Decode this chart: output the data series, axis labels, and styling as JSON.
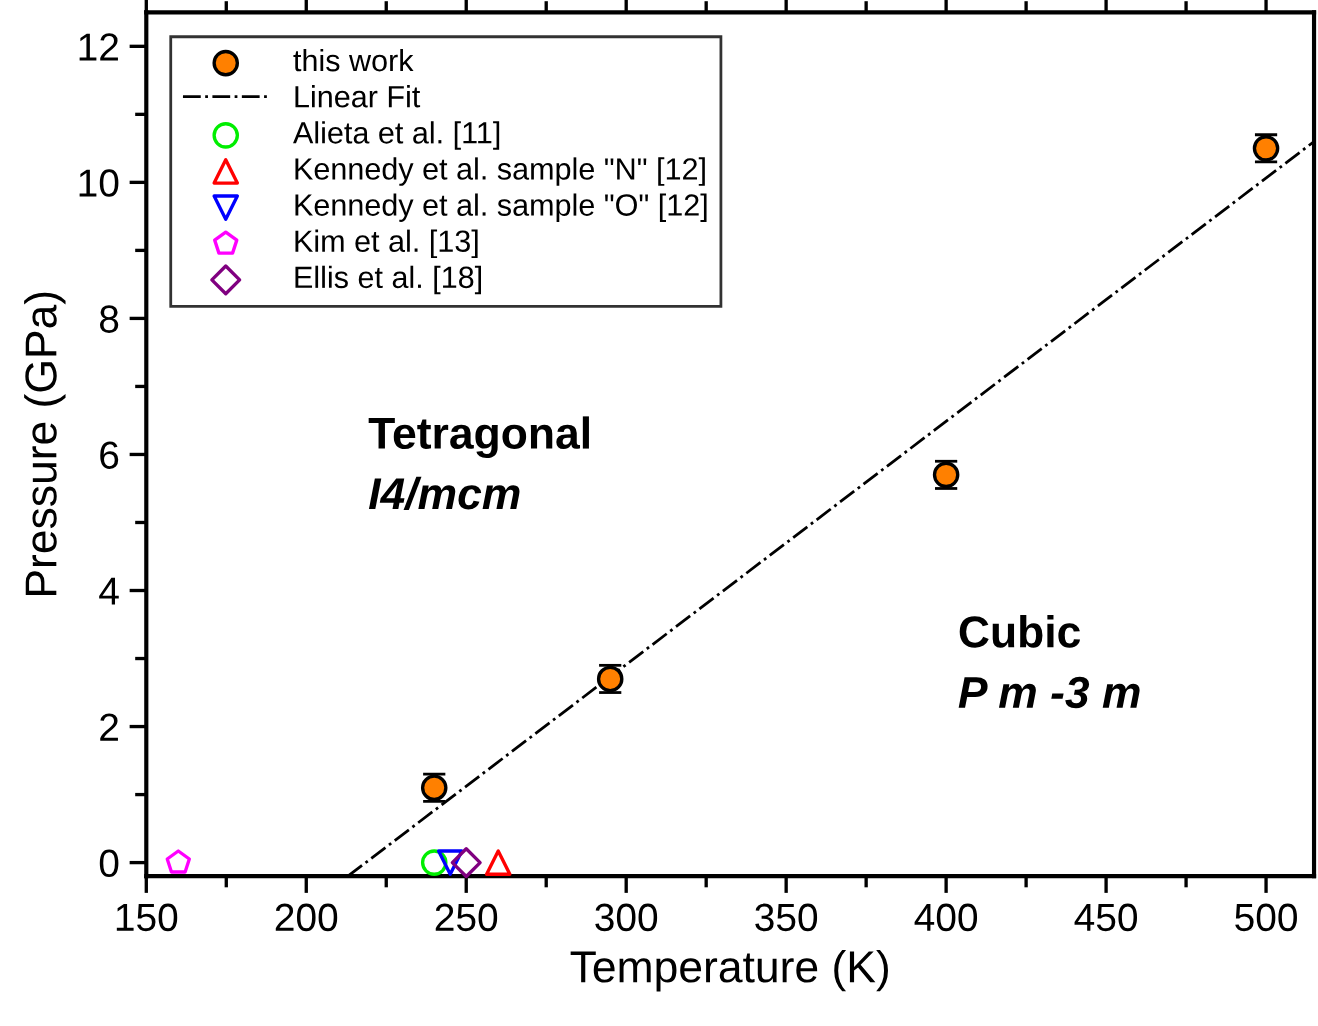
{
  "chart_data": {
    "type": "scatter",
    "xlabel": "Temperature (K)",
    "ylabel": "Pressure (GPa)",
    "xlim": [
      150,
      515
    ],
    "ylim": [
      -0.2,
      12.5
    ],
    "xticks": [
      150,
      200,
      250,
      300,
      350,
      400,
      450,
      500
    ],
    "yticks": [
      0,
      2,
      4,
      6,
      8,
      10,
      12
    ],
    "grid": false,
    "legend": "top left",
    "annotations": [
      "Tetragonal",
      "I4/mcm",
      "Cubic",
      "P m -3 m"
    ],
    "series": [
      {
        "name": "this work",
        "color": "#ff8000",
        "marker": "circle",
        "x": [
          240,
          295,
          400,
          500
        ],
        "values": [
          1.1,
          2.7,
          5.7,
          10.5
        ],
        "errors": [
          0.2,
          0.2,
          0.2,
          0.2
        ]
      },
      {
        "name": "Linear Fit",
        "type": "line",
        "color": "#000000",
        "line_style": "dashdot",
        "marker": "none",
        "x": [
          213,
          515
        ],
        "values": [
          -0.2,
          10.6
        ]
      },
      {
        "name": "Alieta et al. [11]",
        "color": "#00ee00",
        "marker": "circle",
        "x": [
          240
        ],
        "values": [
          0
        ]
      },
      {
        "name": "Kennedy et al. sample \"N\" [12]",
        "color": "#ff0000",
        "marker": "triangle",
        "x": [
          260
        ],
        "values": [
          0
        ]
      },
      {
        "name": "Kennedy et al. sample \"O\" [12]",
        "color": "#0000ff",
        "marker": "triangle_down",
        "x": [
          245
        ],
        "values": [
          0
        ]
      },
      {
        "name": "Kim et al. [13]",
        "color": "#ff00ff",
        "x": [
          160
        ],
        "values": [
          0
        ]
      },
      {
        "name": "Ellis et al. [18]",
        "color": "#800080",
        "marker": "diamond",
        "x": [
          250
        ],
        "values": [
          0
        ]
      }
    ]
  }
}
